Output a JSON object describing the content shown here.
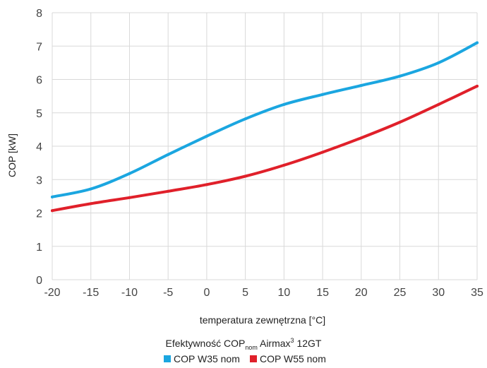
{
  "chart_data": {
    "type": "line",
    "title": "Efektywność COP",
    "title_sub": "nom",
    "title_suffix": " Airmax",
    "title_sup": "3",
    "title_tail": " 12GT",
    "xlabel": "temperatura zewnętrzna [°C]",
    "ylabel": "COP [kW]",
    "xlim": [
      -20,
      35
    ],
    "ylim": [
      0,
      8
    ],
    "x_ticks": [
      "-20",
      "-15",
      "-10",
      "-5",
      "0",
      "5",
      "10",
      "15",
      "20",
      "25",
      "30",
      "35"
    ],
    "y_ticks": [
      "0",
      "1",
      "2",
      "3",
      "4",
      "5",
      "6",
      "7",
      "8"
    ],
    "grid": true,
    "legend_position": "bottom",
    "series": [
      {
        "name": "COP W35 nom",
        "color": "#1ba6e0",
        "x": [
          -20,
          -15,
          -10,
          -5,
          0,
          5,
          10,
          15,
          20,
          25,
          30,
          35
        ],
        "y": [
          2.48,
          2.72,
          3.18,
          3.75,
          4.3,
          4.82,
          5.25,
          5.55,
          5.82,
          6.1,
          6.5,
          7.1
        ]
      },
      {
        "name": "COP W55 nom",
        "color": "#e0202a",
        "x": [
          -20,
          -15,
          -10,
          -5,
          0,
          5,
          10,
          15,
          20,
          25,
          30,
          35
        ],
        "y": [
          2.07,
          2.28,
          2.46,
          2.65,
          2.85,
          3.1,
          3.43,
          3.82,
          4.25,
          4.72,
          5.25,
          5.8
        ]
      }
    ]
  }
}
